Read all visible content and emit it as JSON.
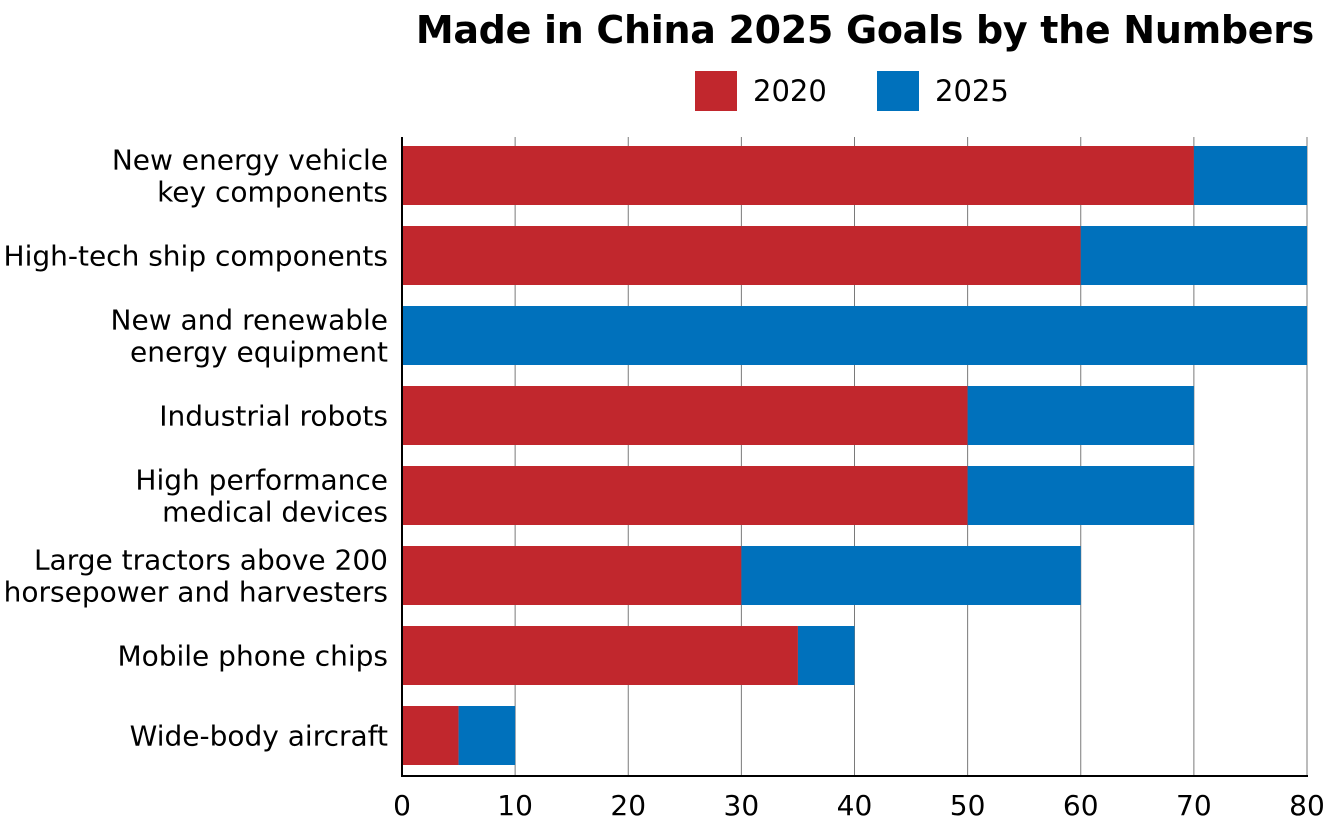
{
  "chart_data": {
    "type": "bar",
    "stacked": true,
    "orientation": "horizontal",
    "title": "Made in China 2025 Goals by the Numbers",
    "xlabel": "",
    "ylabel": "",
    "xlim": [
      0,
      80
    ],
    "x_ticks": [
      0,
      10,
      20,
      30,
      40,
      50,
      60,
      70,
      80
    ],
    "grid": "vertical",
    "legend_position": "top-right",
    "categories": [
      [
        "New energy vehicle",
        "key components"
      ],
      [
        "High-tech ship components"
      ],
      [
        "New and renewable",
        "energy equipment"
      ],
      [
        "Industrial robots"
      ],
      [
        "High performance",
        "medical devices"
      ],
      [
        "Large tractors above 200",
        "horsepower and harvesters"
      ],
      [
        "Mobile phone chips"
      ],
      [
        "Wide-body aircraft"
      ]
    ],
    "series": [
      {
        "name": "2020",
        "color": "#c1272d",
        "values": [
          70,
          60,
          0,
          50,
          50,
          30,
          35,
          5
        ]
      },
      {
        "name": "2025",
        "color": "#0071bc",
        "values": [
          10,
          20,
          80,
          20,
          20,
          30,
          5,
          5
        ]
      }
    ]
  }
}
